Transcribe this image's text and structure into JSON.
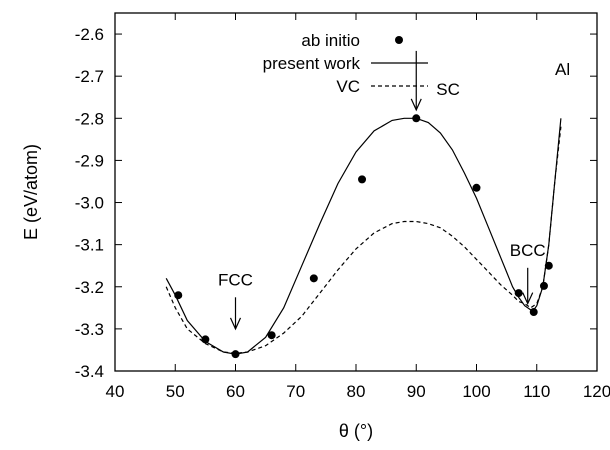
{
  "chart_data": {
    "type": "line",
    "xlabel": "θ (°)",
    "ylabel": "E (eV/atom)",
    "xlim": [
      40,
      120
    ],
    "ylim": [
      -3.4,
      -2.55
    ],
    "xticks": [
      "40",
      "50",
      "60",
      "70",
      "80",
      "90",
      "100",
      "110",
      "120"
    ],
    "yticks": [
      "-3.4",
      "-3.3",
      "-3.2",
      "-3.1",
      "-3.0",
      "-2.9",
      "-2.8",
      "-2.7",
      "-2.6"
    ],
    "legend_position": "top-left",
    "series": [
      {
        "name": "ab initio",
        "style": "points",
        "x": [
          50.5,
          55,
          60,
          66,
          73,
          81,
          90,
          100,
          107,
          109.5,
          111.2,
          112
        ],
        "y": [
          -3.22,
          -3.325,
          -3.36,
          -3.315,
          -3.18,
          -2.945,
          -2.8,
          -2.965,
          -3.215,
          -3.26,
          -3.198,
          -3.15
        ]
      },
      {
        "name": "present work",
        "style": "solid",
        "x": [
          48.5,
          50,
          52,
          55,
          58,
          60,
          62,
          65,
          68,
          71,
          74,
          77,
          80,
          83,
          86,
          88,
          90,
          92,
          94,
          96,
          98,
          100,
          102,
          104,
          105,
          106,
          107,
          108,
          109,
          109.5,
          110,
          111,
          112,
          113,
          114
        ],
        "y": [
          -3.18,
          -3.22,
          -3.28,
          -3.33,
          -3.355,
          -3.36,
          -3.355,
          -3.32,
          -3.25,
          -3.15,
          -3.05,
          -2.955,
          -2.88,
          -2.83,
          -2.805,
          -2.8,
          -2.8,
          -2.81,
          -2.835,
          -2.875,
          -2.93,
          -2.99,
          -3.06,
          -3.13,
          -3.165,
          -3.2,
          -3.225,
          -3.245,
          -3.255,
          -3.255,
          -3.245,
          -3.2,
          -3.1,
          -2.95,
          -2.8
        ]
      },
      {
        "name": "VC",
        "style": "dashed",
        "x": [
          48.5,
          50,
          52,
          55,
          58,
          60,
          62,
          65,
          68,
          71,
          74,
          77,
          80,
          83,
          86,
          88,
          90,
          92,
          94,
          96,
          98,
          100,
          102,
          104,
          106,
          107,
          108,
          109,
          110,
          111,
          112,
          113,
          114
        ],
        "y": [
          -3.2,
          -3.25,
          -3.3,
          -3.335,
          -3.355,
          -3.358,
          -3.355,
          -3.34,
          -3.31,
          -3.27,
          -3.215,
          -3.16,
          -3.11,
          -3.072,
          -3.05,
          -3.045,
          -3.045,
          -3.05,
          -3.06,
          -3.08,
          -3.105,
          -3.135,
          -3.165,
          -3.195,
          -3.22,
          -3.235,
          -3.24,
          -3.25,
          -3.24,
          -3.2,
          -3.1,
          -2.95,
          -2.82
        ]
      }
    ],
    "annotations": [
      {
        "text": "FCC",
        "arrow_x": 60,
        "arrow_y_start": -3.225,
        "arrow_y_end": -3.3
      },
      {
        "text": "SC",
        "arrow_x": 90,
        "arrow_y_start": -2.64,
        "arrow_y_end": -2.78
      },
      {
        "text": "BCC",
        "arrow_x": 108.5,
        "arrow_y_start": -3.155,
        "arrow_y_end": -3.24
      }
    ],
    "corner_label": "Al"
  }
}
